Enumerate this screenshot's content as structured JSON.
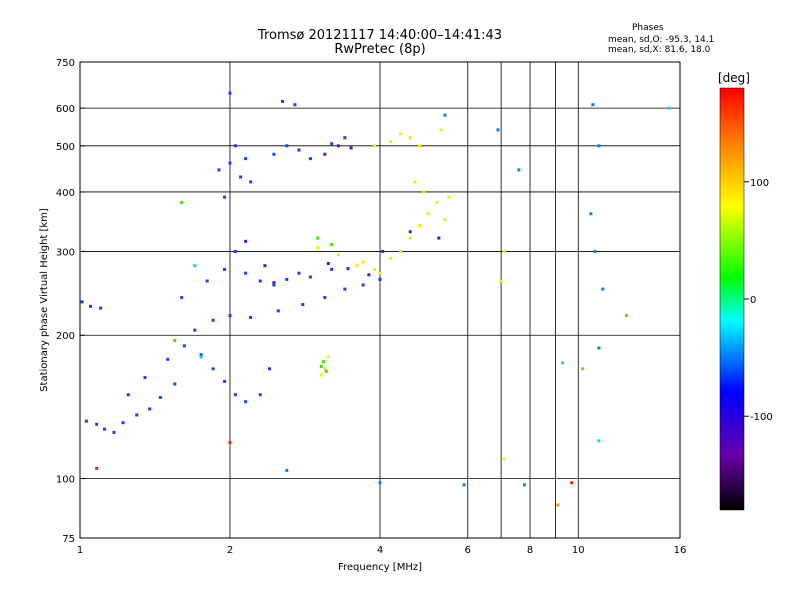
{
  "chart_data": {
    "type": "scatter",
    "title": "Tromsø 20121117 14:40:00–14:41:43",
    "subtitle": "RwPretec (8p)",
    "xlabel": "Frequency [MHz]",
    "ylabel": "Stationary phase Virtual Height [km]",
    "x_scale": "log",
    "y_scale": "log",
    "xlim": [
      1,
      16
    ],
    "ylim": [
      75,
      750
    ],
    "x_ticks": [
      1,
      2,
      4,
      6,
      8,
      10,
      16
    ],
    "y_ticks": [
      75,
      100,
      200,
      300,
      400,
      500,
      600,
      750
    ],
    "x_grid_values": [
      2,
      4,
      6,
      7,
      8,
      9,
      10
    ],
    "y_grid_values": [
      100,
      200,
      300,
      400,
      500,
      600
    ],
    "grid": true,
    "stats": {
      "heading": "Phases",
      "line_o": "mean, sd,O: -95.3, 14.1",
      "line_x": "mean, sd,X:  81.6, 18.0"
    },
    "colorbar": {
      "label": "[deg]",
      "ticks": [
        100,
        0,
        -100
      ],
      "range": [
        -180,
        180
      ],
      "colors_low_to_high": [
        "#000000",
        "#6600aa",
        "#0000ff",
        "#00ffff",
        "#00ff00",
        "#ffff00",
        "#ff8800",
        "#ff0000"
      ]
    },
    "series": [
      {
        "color": "#1040ff",
        "points": [
          [
            1.03,
            132
          ],
          [
            1.08,
            130
          ],
          [
            1.12,
            127
          ],
          [
            1.17,
            125
          ],
          [
            1.22,
            131
          ],
          [
            1.3,
            136
          ],
          [
            1.38,
            140
          ],
          [
            1.45,
            148
          ],
          [
            1.55,
            158
          ],
          [
            1.25,
            150
          ],
          [
            1.35,
            163
          ],
          [
            1.5,
            178
          ],
          [
            1.62,
            190
          ],
          [
            1.75,
            182
          ],
          [
            1.85,
            170
          ],
          [
            1.95,
            160
          ],
          [
            2.05,
            150
          ],
          [
            2.15,
            145
          ],
          [
            2.3,
            150
          ],
          [
            2.4,
            170
          ],
          [
            1.7,
            205
          ],
          [
            1.85,
            215
          ],
          [
            2.0,
            220
          ],
          [
            2.2,
            218
          ],
          [
            2.5,
            225
          ],
          [
            2.8,
            232
          ],
          [
            3.1,
            240
          ],
          [
            3.4,
            250
          ],
          [
            3.7,
            255
          ],
          [
            4.0,
            262
          ],
          [
            1.6,
            240
          ],
          [
            1.8,
            260
          ],
          [
            1.95,
            275
          ],
          [
            2.05,
            300
          ],
          [
            2.15,
            270
          ],
          [
            2.3,
            260
          ],
          [
            2.45,
            255
          ],
          [
            2.6,
            262
          ],
          [
            2.75,
            270
          ],
          [
            2.9,
            265
          ],
          [
            3.2,
            275
          ],
          [
            1.01,
            235
          ],
          [
            1.05,
            230
          ],
          [
            1.1,
            228
          ],
          [
            1.9,
            445
          ],
          [
            2.0,
            460
          ],
          [
            2.1,
            430
          ],
          [
            2.2,
            420
          ],
          [
            1.95,
            390
          ],
          [
            2.05,
            500
          ],
          [
            2.15,
            470
          ],
          [
            2.45,
            480
          ],
          [
            2.6,
            500
          ],
          [
            2.75,
            490
          ],
          [
            2.9,
            470
          ],
          [
            3.2,
            505
          ],
          [
            3.4,
            520
          ],
          [
            2.55,
            620
          ],
          [
            2.7,
            610
          ],
          [
            2.0,
            645
          ]
        ]
      },
      {
        "color": "#5a10c8",
        "points": [
          [
            3.1,
            480
          ],
          [
            3.3,
            500
          ],
          [
            3.5,
            495
          ],
          [
            3.15,
            283
          ],
          [
            3.45,
            276
          ],
          [
            3.8,
            268
          ],
          [
            4.05,
            300
          ],
          [
            4.6,
            330
          ],
          [
            5.25,
            320
          ],
          [
            2.15,
            315
          ],
          [
            2.35,
            280
          ],
          [
            2.45,
            258
          ]
        ]
      },
      {
        "color": "#f0f000",
        "points": [
          [
            3.0,
            305
          ],
          [
            3.3,
            295
          ],
          [
            3.6,
            280
          ],
          [
            3.9,
            275
          ],
          [
            4.2,
            290
          ],
          [
            4.4,
            300
          ],
          [
            4.6,
            320
          ],
          [
            4.8,
            340
          ],
          [
            5.0,
            360
          ],
          [
            5.2,
            380
          ],
          [
            4.9,
            400
          ],
          [
            4.7,
            420
          ],
          [
            5.4,
            350
          ],
          [
            5.5,
            390
          ],
          [
            4.4,
            530
          ],
          [
            4.6,
            520
          ],
          [
            4.8,
            500
          ],
          [
            4.2,
            510
          ],
          [
            3.9,
            500
          ],
          [
            4.0,
            270
          ],
          [
            3.7,
            285
          ],
          [
            3.1,
            170
          ],
          [
            3.15,
            180
          ],
          [
            3.05,
            165
          ],
          [
            7.1,
            300
          ],
          [
            7.0,
            260
          ],
          [
            7.1,
            110
          ],
          [
            5.3,
            540
          ]
        ]
      },
      {
        "color": "#40e000",
        "points": [
          [
            3.05,
            172
          ],
          [
            3.12,
            168
          ],
          [
            3.08,
            176
          ],
          [
            3.0,
            320
          ],
          [
            3.2,
            310
          ],
          [
            1.55,
            195
          ],
          [
            1.6,
            380
          ]
        ]
      },
      {
        "color": "#00d8ff",
        "points": [
          [
            1.7,
            280
          ],
          [
            1.75,
            180
          ],
          [
            9.3,
            175
          ],
          [
            11.0,
            120
          ],
          [
            15.2,
            600
          ]
        ]
      },
      {
        "color": "#ff2000",
        "points": [
          [
            2.0,
            119
          ],
          [
            1.08,
            105
          ],
          [
            9.7,
            98
          ]
        ]
      },
      {
        "color": "#ff9000",
        "points": [
          [
            9.1,
            88
          ],
          [
            10.2,
            170
          ],
          [
            12.5,
            220
          ]
        ]
      },
      {
        "color": "#0080ff",
        "points": [
          [
            6.9,
            540
          ],
          [
            7.6,
            445
          ],
          [
            10.7,
            610
          ],
          [
            11.0,
            500
          ],
          [
            11.2,
            250
          ],
          [
            10.6,
            360
          ],
          [
            10.8,
            300
          ],
          [
            11.0,
            188
          ],
          [
            5.9,
            97
          ],
          [
            4.0,
            98
          ],
          [
            7.8,
            97
          ],
          [
            2.6,
            104
          ],
          [
            5.4,
            580
          ]
        ]
      }
    ]
  }
}
